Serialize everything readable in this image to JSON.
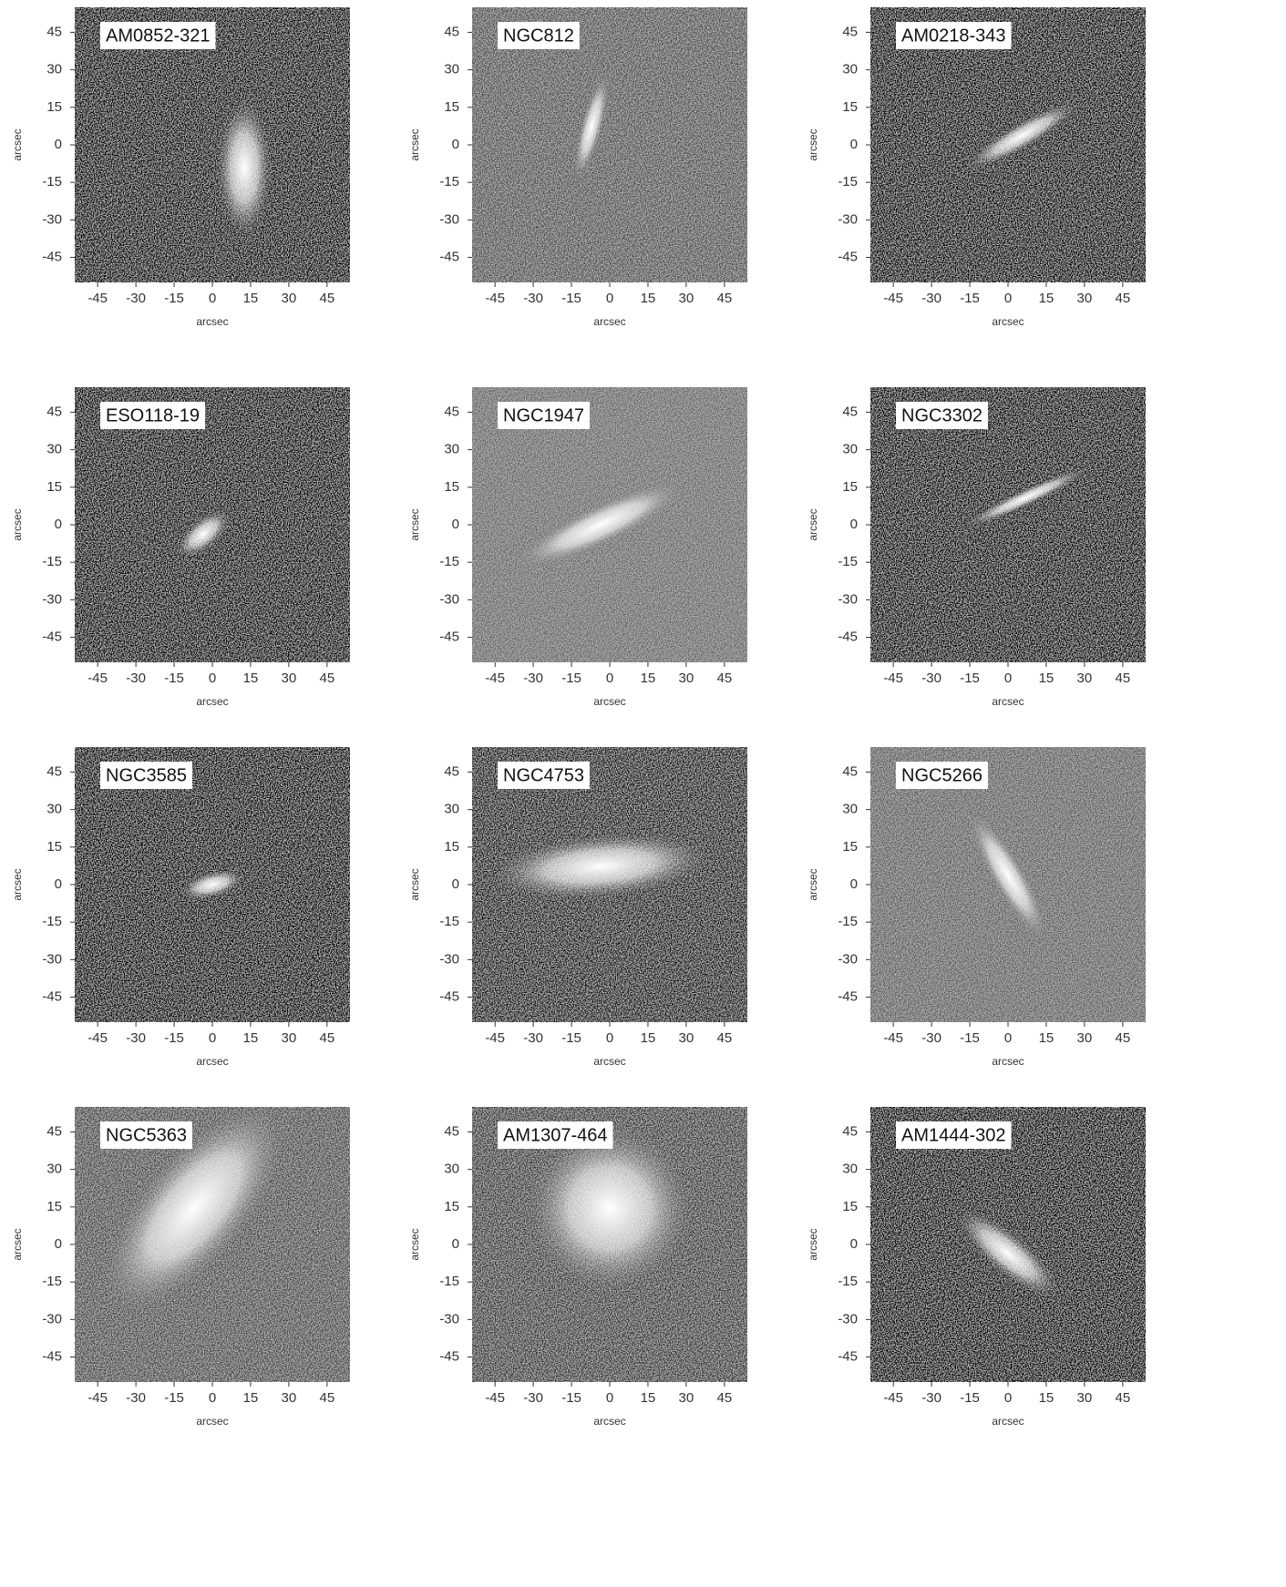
{
  "figure": {
    "panels": [
      {
        "label": "AM0852-321"
      },
      {
        "label": "NGC812"
      },
      {
        "label": "AM0218-343"
      },
      {
        "label": "ESO118-19"
      },
      {
        "label": "NGC1947"
      },
      {
        "label": "NGC3302"
      },
      {
        "label": "NGC3585"
      },
      {
        "label": "NGC4753"
      },
      {
        "label": "NGC5266"
      },
      {
        "label": "NGC5363"
      },
      {
        "label": "AM1307-464"
      },
      {
        "label": "AM1444-302"
      }
    ],
    "xlabel": "arcsec",
    "ylabel": "arcsec",
    "xlim": [
      -54,
      54
    ],
    "ylim": [
      -55,
      55
    ],
    "xticks": [
      -45,
      -30,
      -15,
      0,
      15,
      30,
      45
    ],
    "yticks": [
      -45,
      -30,
      -15,
      0,
      15,
      30,
      45
    ]
  }
}
